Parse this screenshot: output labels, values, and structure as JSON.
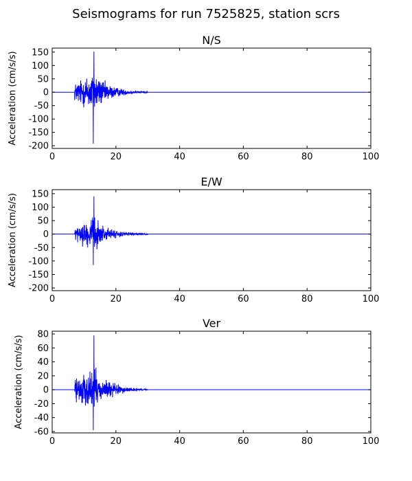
{
  "figure": {
    "suptitle": "Seismograms for run 7525825, station scrs"
  },
  "chart_data": [
    {
      "type": "line",
      "title": "N/S",
      "xlabel": "",
      "ylabel": "Acceleration (cm/s/s)",
      "xlim": [
        0,
        100
      ],
      "ylim": [
        -210,
        165
      ],
      "xticks": [
        0,
        20,
        40,
        60,
        80,
        100
      ],
      "yticks": [
        -200,
        -150,
        -100,
        -50,
        0,
        50,
        100,
        150
      ],
      "grid": false,
      "series": [
        {
          "color": "#0000ff",
          "onset": 7,
          "peak_time": 13,
          "coda_end": 30,
          "max": 152,
          "min": -192,
          "baseline": 0,
          "x_end": 100
        }
      ]
    },
    {
      "type": "line",
      "title": "E/W",
      "xlabel": "",
      "ylabel": "Acceleration (cm/s/s)",
      "xlim": [
        0,
        100
      ],
      "ylim": [
        -210,
        165
      ],
      "xticks": [
        0,
        20,
        40,
        60,
        80,
        100
      ],
      "yticks": [
        -200,
        -150,
        -100,
        -50,
        0,
        50,
        100,
        150
      ],
      "grid": false,
      "series": [
        {
          "color": "#0000ff",
          "onset": 7,
          "peak_time": 13,
          "coda_end": 30,
          "max": 140,
          "min": -115,
          "baseline": 0,
          "x_end": 100
        }
      ]
    },
    {
      "type": "line",
      "title": "Ver",
      "xlabel": "",
      "ylabel": "Acceleration (cm/s/s)",
      "xlim": [
        0,
        100
      ],
      "ylim": [
        -62,
        84
      ],
      "xticks": [
        0,
        20,
        40,
        60,
        80,
        100
      ],
      "yticks": [
        -60,
        -40,
        -20,
        0,
        20,
        40,
        60,
        80
      ],
      "grid": false,
      "series": [
        {
          "color": "#0000ff",
          "onset": 7,
          "peak_time": 13,
          "coda_end": 30,
          "max": 78,
          "min": -58,
          "baseline": 0,
          "x_end": 100
        }
      ]
    }
  ]
}
